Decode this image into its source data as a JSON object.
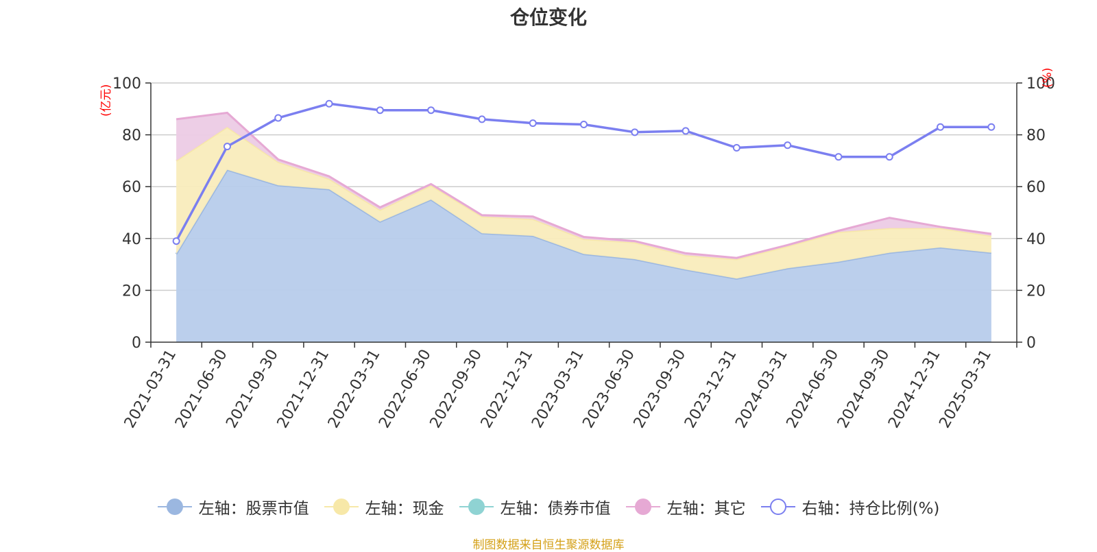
{
  "title": "仓位变化",
  "source": "制图数据来自恒生聚源数据库",
  "chart_data": {
    "type": "area",
    "title": "仓位变化",
    "categories": [
      "2021-03-31",
      "2021-06-30",
      "2021-09-30",
      "2021-12-31",
      "2022-03-31",
      "2022-06-30",
      "2022-09-30",
      "2022-12-31",
      "2023-03-31",
      "2023-06-30",
      "2023-09-30",
      "2023-12-31",
      "2024-03-31",
      "2024-06-30",
      "2024-09-30",
      "2024-12-31",
      "2025-03-31"
    ],
    "left_axis": {
      "unit": "(亿元)",
      "ylim": [
        0,
        100
      ],
      "ticks": [
        0,
        20,
        40,
        60,
        80,
        100
      ]
    },
    "right_axis": {
      "unit": "(%)",
      "ylim": [
        0,
        100
      ],
      "ticks": [
        0,
        20,
        40,
        60,
        80,
        100
      ]
    },
    "stacked": true,
    "grid": true,
    "legend_position": "bottom",
    "series": [
      {
        "name": "左轴：股票市值",
        "axis": "left",
        "kind": "area",
        "color": "#9bb7e0",
        "fill": "#b7cceb",
        "values": [
          34,
          66.5,
          60.5,
          59,
          46.5,
          55,
          42,
          41,
          34,
          32,
          28,
          24.5,
          28.5,
          31,
          34.5,
          36.5,
          34.5
        ]
      },
      {
        "name": "左轴：现金",
        "axis": "left",
        "kind": "area",
        "color": "#f7e8a8",
        "fill": "#f9ecbc",
        "values": [
          36,
          16.5,
          9,
          4,
          4.5,
          5.5,
          6.5,
          6.5,
          5.8,
          6.5,
          5.5,
          7.5,
          8.5,
          11.5,
          9.5,
          7.5,
          6.5
        ]
      },
      {
        "name": "左轴：债券市值",
        "axis": "left",
        "kind": "area",
        "color": "#8fd3d3",
        "fill": "#bfe6e6",
        "values": [
          0,
          0,
          0,
          0,
          0,
          0,
          0,
          0,
          0,
          0,
          0,
          0,
          0,
          0,
          0,
          0,
          0
        ]
      },
      {
        "name": "左轴：其它",
        "axis": "left",
        "kind": "area",
        "color": "#e6a9d4",
        "fill": "#eccbe5",
        "values": [
          16,
          5.5,
          1,
          1,
          1,
          0.5,
          0.5,
          1,
          0.8,
          0.5,
          0.8,
          0.5,
          0.5,
          0.5,
          4,
          0.5,
          0.8
        ]
      },
      {
        "name": "右轴：持仓比例(%)",
        "axis": "right",
        "kind": "line",
        "color": "#7b7ff0",
        "values": [
          39,
          75.5,
          86.5,
          92,
          89.5,
          89.5,
          86,
          84.5,
          84,
          81,
          81.5,
          75,
          76,
          71.5,
          71.5,
          83,
          83
        ]
      }
    ]
  }
}
